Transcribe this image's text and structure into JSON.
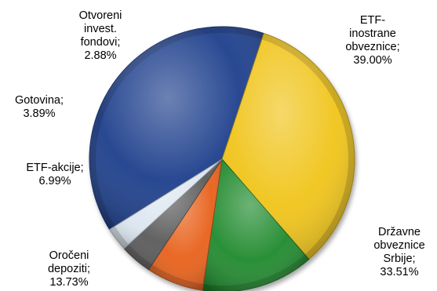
{
  "chart_data": {
    "type": "pie",
    "title": "",
    "legend": "none",
    "slices": [
      {
        "label_lines": [
          "ETF-",
          "inostrane",
          "obveznice;",
          "39.00%"
        ],
        "category": "ETF-inostrane obveznice",
        "value": 39.0,
        "color": "#1d3f8c"
      },
      {
        "label_lines": [
          "Državne",
          "obveznice",
          "Srbije;",
          "33.51%"
        ],
        "category": "Državne obveznice Srbije",
        "value": 33.51,
        "color": "#f0c419"
      },
      {
        "label_lines": [
          "Oročeni",
          "depoziti;",
          "13.73%"
        ],
        "category": "Oročeni depoziti",
        "value": 13.73,
        "color": "#1f8a2d"
      },
      {
        "label_lines": [
          "ETF-akcije;",
          "6.99%"
        ],
        "category": "ETF-akcije",
        "value": 6.99,
        "color": "#e8601a"
      },
      {
        "label_lines": [
          "Gotovina;",
          "3.89%"
        ],
        "category": "Gotovina",
        "value": 3.89,
        "color": "#5a5a5a"
      },
      {
        "label_lines": [
          "Otvoreni",
          "invest.",
          "fondovi;",
          "2.88%"
        ],
        "category": "Otvoreni invest. fondovi",
        "value": 2.88,
        "color": "#dce6f0"
      }
    ]
  }
}
